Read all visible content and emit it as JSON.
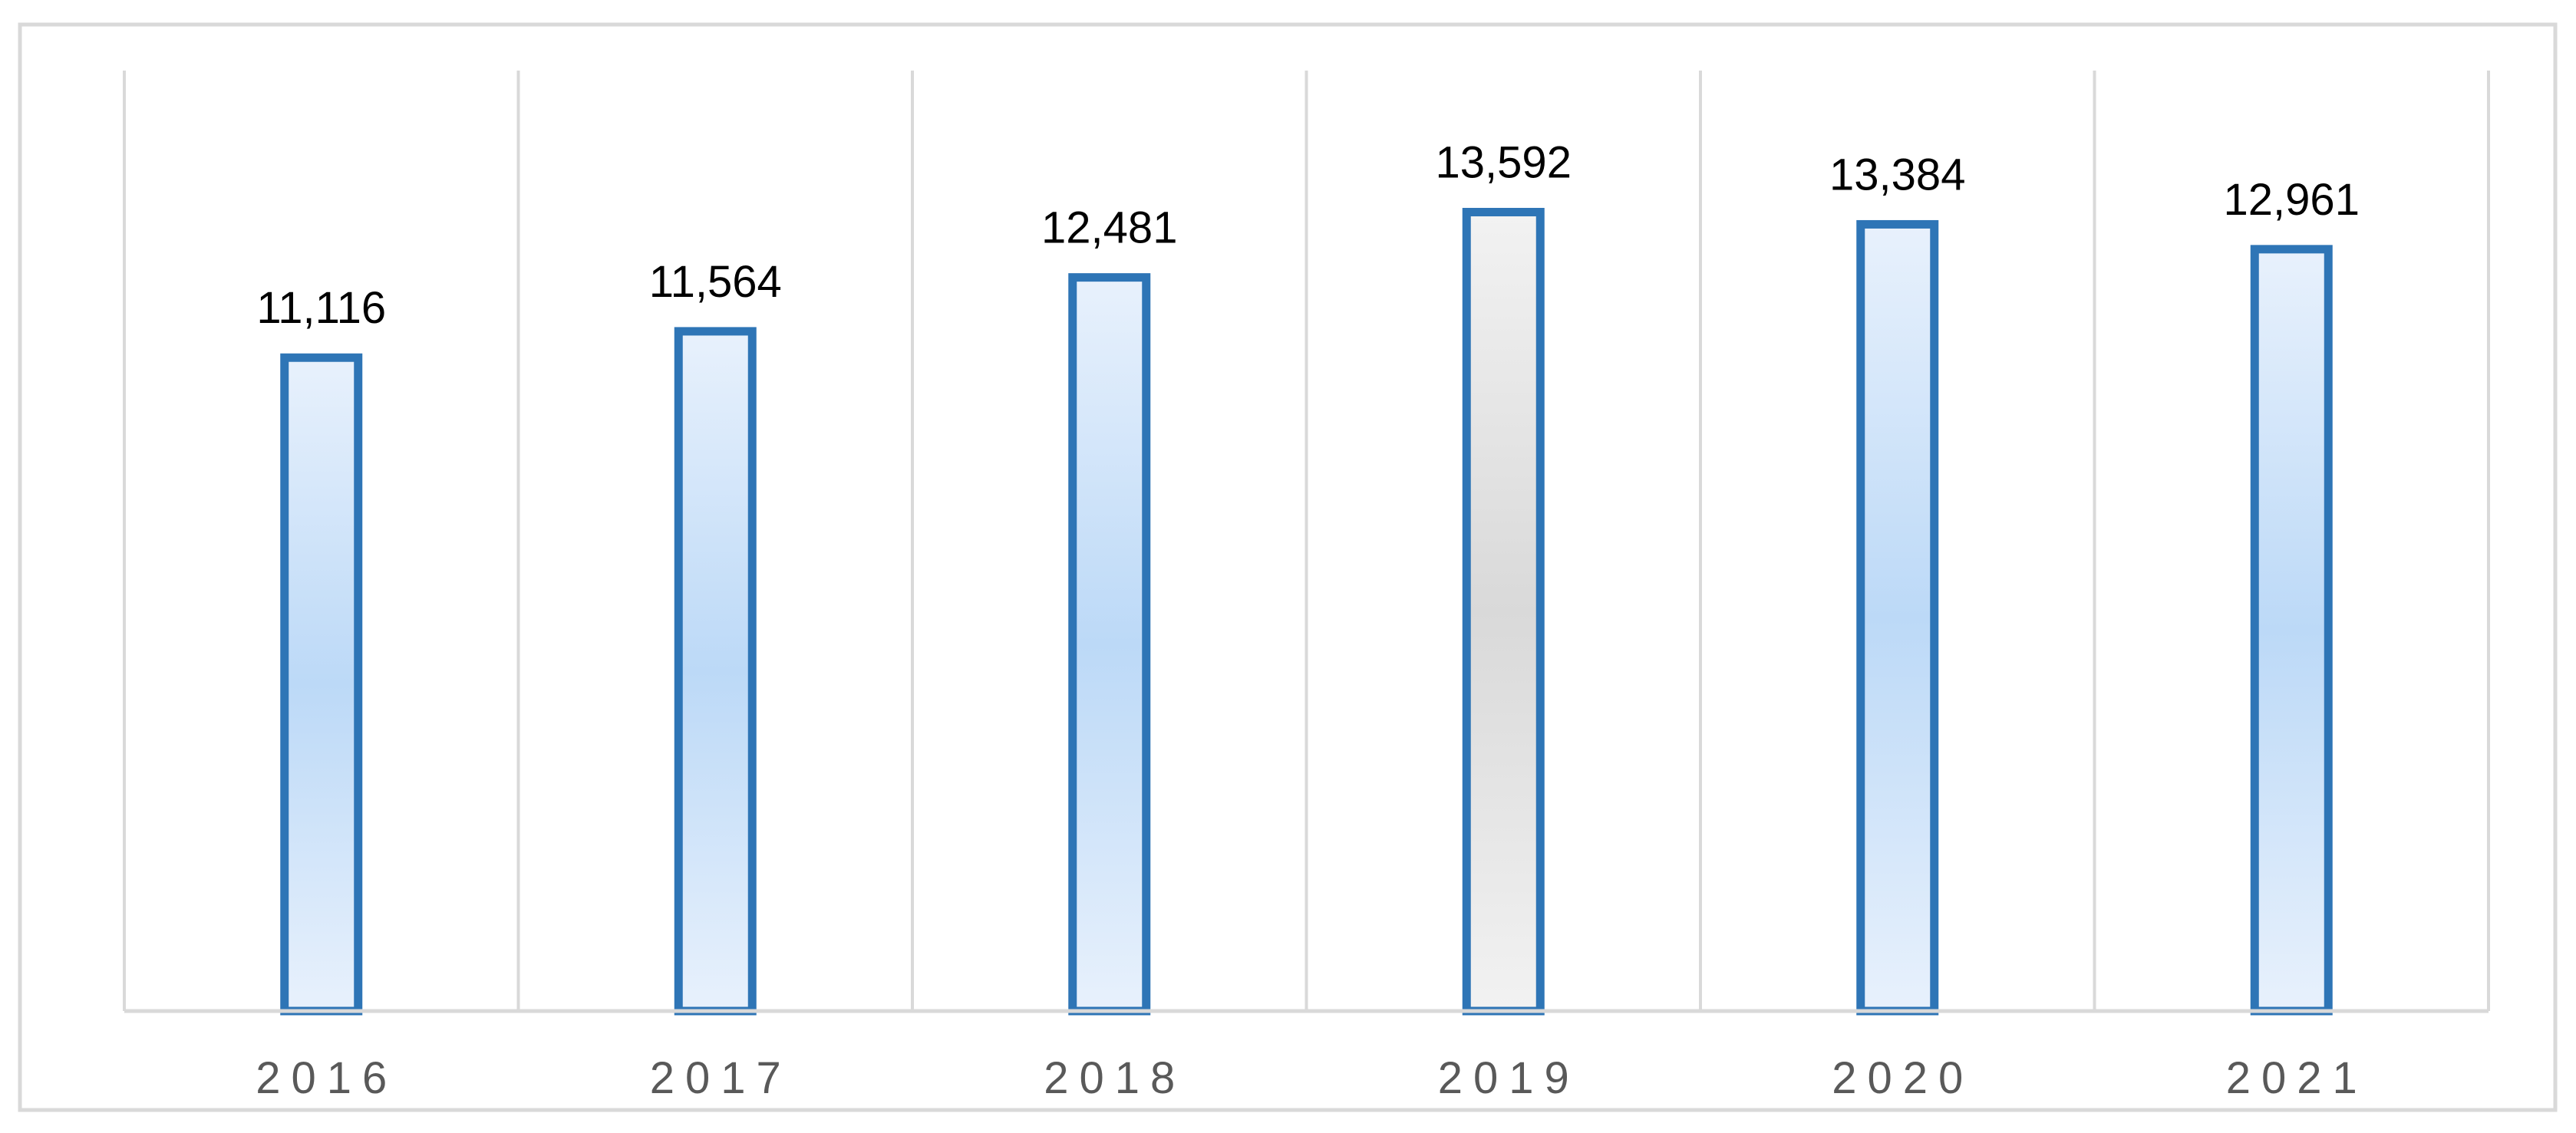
{
  "chart_data": {
    "type": "bar",
    "categories": [
      "2016",
      "2017",
      "2018",
      "2019",
      "2020",
      "2021"
    ],
    "values": [
      11116,
      11564,
      12481,
      13592,
      13384,
      12961
    ],
    "value_labels": [
      "11,116",
      "11,564",
      "12,481",
      "13,592",
      "13,384",
      "12,961"
    ],
    "title": "",
    "xlabel": "",
    "ylabel": "",
    "ylim": [
      0,
      16000
    ],
    "grid": {
      "vertical": true,
      "horizontal": false
    },
    "legend": "none",
    "highlighted_category": "2019",
    "colors": {
      "bar_border": "#2E75B6",
      "bar_fill_edge": "#E8F1FC",
      "bar_fill_center": "#BCD9F7",
      "highlight_fill_edge": "#F2F2F2",
      "highlight_fill_center": "#D9D9D9",
      "grid": "#D9D9D9",
      "frame": "#D9D9D9",
      "tick_text": "#595959",
      "label_text": "#000000"
    }
  }
}
